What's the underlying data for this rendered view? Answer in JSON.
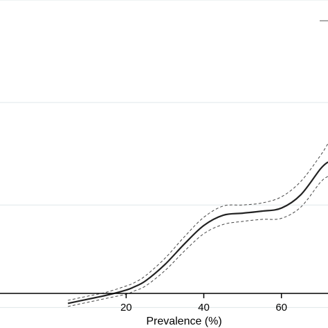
{
  "chart_data": {
    "type": "line",
    "xlabel": "Prevalence (%)",
    "ylabel": "",
    "xlim": [
      -12.5,
      72
    ],
    "ylim": [
      -0.2,
      3.0
    ],
    "x_ticks": [
      20,
      40,
      60
    ],
    "y_gridlines": [
      0,
      1,
      2,
      3
    ],
    "grid": "horizontal",
    "legend": "top-right (partially visible, cropped)",
    "series": [
      {
        "style": "solid",
        "x": [
          5,
          10,
          15,
          20,
          22,
          25,
          30,
          35,
          40,
          45,
          50,
          55,
          60,
          65,
          70,
          72
        ],
        "y": [
          0.04,
          0.08,
          0.12,
          0.17,
          0.2,
          0.26,
          0.42,
          0.62,
          0.8,
          0.9,
          0.92,
          0.94,
          0.97,
          1.1,
          1.35,
          1.42
        ]
      },
      {
        "style": "dashed",
        "x": [
          5,
          10,
          15,
          20,
          22,
          25,
          30,
          35,
          40,
          45,
          50,
          55,
          60,
          65,
          70,
          72
        ],
        "y": [
          0.07,
          0.11,
          0.15,
          0.21,
          0.24,
          0.31,
          0.48,
          0.69,
          0.88,
          0.99,
          1.0,
          1.02,
          1.08,
          1.23,
          1.48,
          1.6
        ]
      },
      {
        "style": "dashed",
        "x": [
          5,
          10,
          15,
          20,
          22,
          25,
          30,
          35,
          40,
          45,
          50,
          55,
          60,
          65,
          70,
          72
        ],
        "y": [
          0.01,
          0.05,
          0.09,
          0.13,
          0.16,
          0.21,
          0.36,
          0.55,
          0.72,
          0.81,
          0.84,
          0.86,
          0.87,
          0.98,
          1.22,
          1.28
        ]
      }
    ]
  }
}
